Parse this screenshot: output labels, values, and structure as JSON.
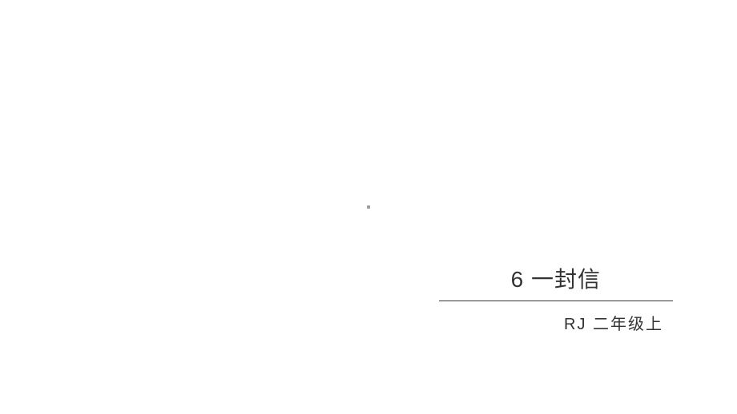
{
  "slide": {
    "title": "6 一封信",
    "subtitle": "RJ  二年级上",
    "center_mark": "■",
    "background_color": "#ffffff",
    "title_color": "#333333",
    "subtitle_color": "#333333",
    "divider_color": "#333333",
    "title_fontsize": 28,
    "subtitle_fontsize": 20
  }
}
